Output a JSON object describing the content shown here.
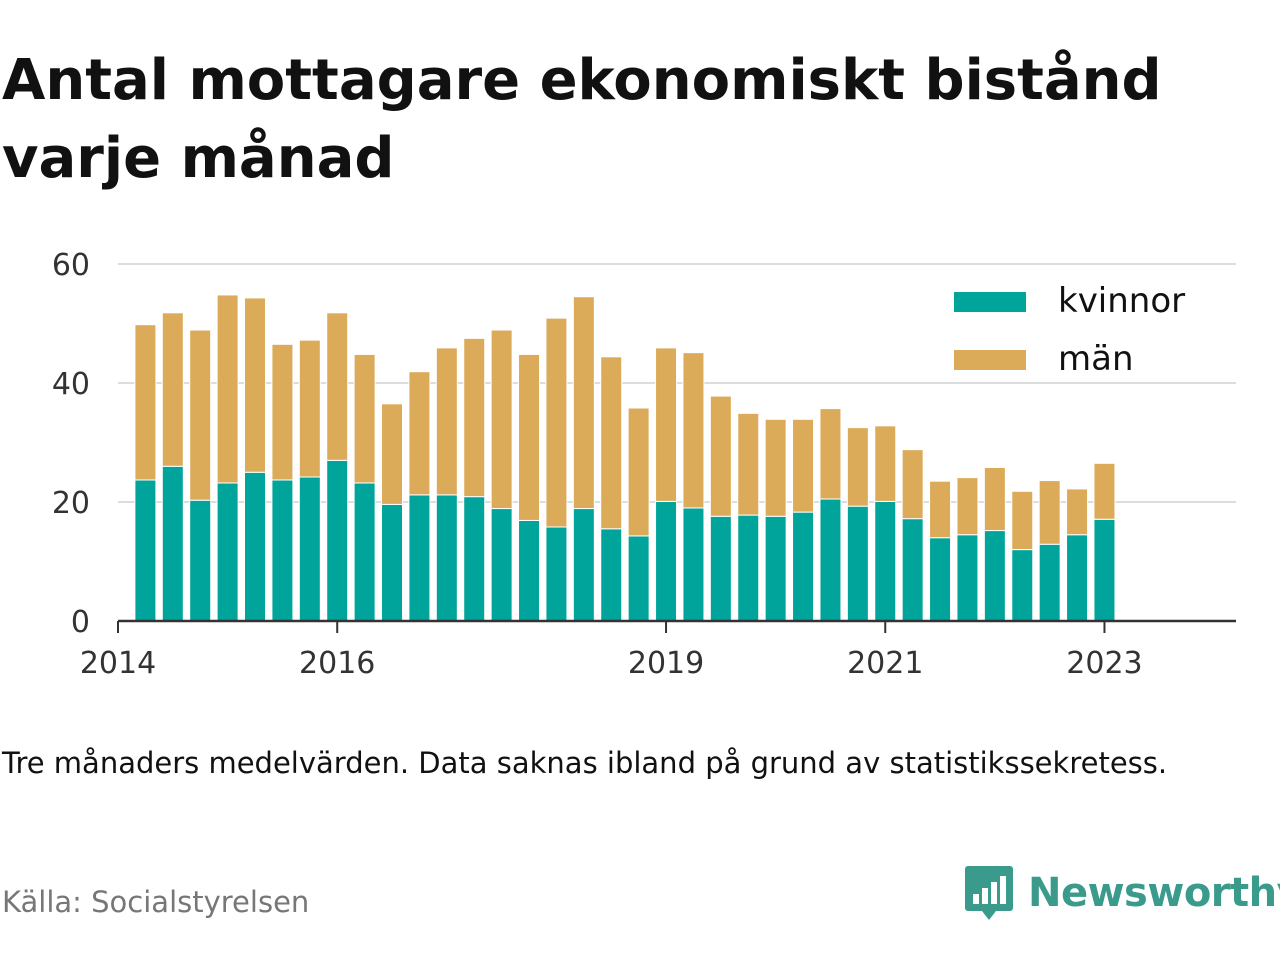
{
  "header": {
    "title": "Antal mottagare ekonomiskt bistånd varje månad"
  },
  "footer": {
    "note": "Tre månaders medelvärden. Data saknas ibland på grund av statistikssekretess.",
    "source": "Källa: Socialstyrelsen",
    "brand": "Newsworthy"
  },
  "colors": {
    "kvinnor": "#00a49a",
    "man": "#dbab5a",
    "brand": "#3a9a8b",
    "grid": "#dddddd",
    "axis": "#333333"
  },
  "chart_data": {
    "type": "bar",
    "stacked": true,
    "title": "",
    "xlabel": "",
    "ylabel": "",
    "ylim": [
      0,
      60
    ],
    "yticks": [
      0,
      20,
      40,
      60
    ],
    "xticks": [
      "2014",
      "2016",
      "2019",
      "2021",
      "2023"
    ],
    "grid": true,
    "legend_position": "top-right",
    "categories": [
      "2014 Q2",
      "2014 Q3",
      "2014 Q4",
      "2015 Q1",
      "2015 Q2",
      "2015 Q3",
      "2015 Q4",
      "2016 Q1",
      "2016 Q2",
      "2016 Q3",
      "2016 Q4",
      "2017 Q1",
      "2017 Q2",
      "2017 Q3",
      "2017 Q4",
      "2018 Q1",
      "2018 Q2",
      "2018 Q3",
      "2018 Q4",
      "2019 Q1",
      "2019 Q2",
      "2019 Q3",
      "2019 Q4",
      "2020 Q1",
      "2020 Q2",
      "2020 Q3",
      "2020 Q4",
      "2021 Q1",
      "2021 Q2",
      "2021 Q3",
      "2021 Q4",
      "2022 Q1",
      "2022 Q2",
      "2022 Q3",
      "2022 Q4",
      "2023 Q1"
    ],
    "series": [
      {
        "name": "kvinnor",
        "values": [
          23.7,
          26,
          20.3,
          23.2,
          25,
          23.7,
          24.2,
          27,
          23.2,
          19.6,
          21.2,
          21.2,
          20.9,
          18.9,
          16.9,
          15.8,
          18.9,
          15.5,
          14.3,
          20.1,
          19,
          17.6,
          17.8,
          17.6,
          18.3,
          20.5,
          19.3,
          20.1,
          17.2,
          14,
          14.5,
          15.2,
          12,
          12.9,
          14.5,
          17.1
        ]
      },
      {
        "name": "män",
        "values": [
          26.1,
          25.8,
          28.6,
          31.6,
          29.3,
          22.8,
          23,
          24.8,
          21.6,
          16.9,
          20.7,
          24.7,
          26.6,
          30,
          27.9,
          35.1,
          35.6,
          28.9,
          21.5,
          25.8,
          26.1,
          20.2,
          17.1,
          16.3,
          15.6,
          15.2,
          13.2,
          12.7,
          11.6,
          9.5,
          9.6,
          10.6,
          9.8,
          10.7,
          7.7,
          9.4
        ]
      }
    ]
  }
}
